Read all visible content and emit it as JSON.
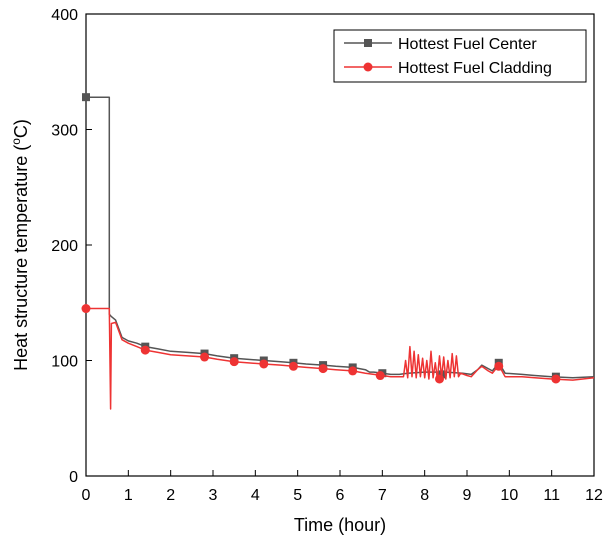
{
  "chart_data": {
    "type": "line",
    "xlabel": "Time (hour)",
    "ylabel": "Heat structure temperature (°C)",
    "ylabel_parts": {
      "pre": "Heat structure temperature (",
      "sup": "o",
      "post": "C)"
    },
    "xlim": [
      0,
      12
    ],
    "ylim": [
      0,
      400
    ],
    "xticks": [
      0,
      1,
      2,
      3,
      4,
      5,
      6,
      7,
      8,
      9,
      10,
      11,
      12
    ],
    "yticks": [
      0,
      100,
      200,
      300,
      400
    ],
    "grid": false,
    "legend_position": "top-right",
    "series": [
      {
        "name": "Hottest Fuel Center",
        "color": "#555555",
        "marker": "square",
        "points": [
          [
            0,
            328
          ],
          [
            0.55,
            328
          ],
          [
            0.55,
            140
          ],
          [
            0.6,
            138
          ],
          [
            0.7,
            135
          ],
          [
            0.85,
            120
          ],
          [
            1.0,
            117
          ],
          [
            1.2,
            115
          ],
          [
            1.4,
            112
          ],
          [
            1.7,
            110
          ],
          [
            2.0,
            108
          ],
          [
            2.4,
            107
          ],
          [
            2.8,
            106
          ],
          [
            3.1,
            104
          ],
          [
            3.5,
            102
          ],
          [
            3.8,
            101
          ],
          [
            4.2,
            100
          ],
          [
            4.6,
            99
          ],
          [
            4.9,
            98
          ],
          [
            5.2,
            97
          ],
          [
            5.6,
            96
          ],
          [
            5.9,
            95
          ],
          [
            6.3,
            94
          ],
          [
            6.6,
            92
          ],
          [
            6.7,
            90
          ],
          [
            6.8,
            90
          ],
          [
            7.0,
            89
          ],
          [
            7.2,
            88
          ],
          [
            7.4,
            88
          ],
          [
            7.6,
            89
          ],
          [
            8.0,
            90
          ],
          [
            8.5,
            90
          ],
          [
            8.9,
            89
          ],
          [
            9.1,
            88
          ],
          [
            9.25,
            92
          ],
          [
            9.35,
            96
          ],
          [
            9.5,
            93
          ],
          [
            9.6,
            91
          ],
          [
            9.75,
            98
          ],
          [
            9.9,
            89
          ],
          [
            10.3,
            88
          ],
          [
            10.6,
            87
          ],
          [
            11.0,
            86
          ],
          [
            11.5,
            85
          ],
          [
            12.0,
            86
          ]
        ],
        "marker_points": [
          [
            0,
            328
          ],
          [
            1.4,
            112
          ],
          [
            2.8,
            106
          ],
          [
            3.5,
            102
          ],
          [
            4.2,
            100
          ],
          [
            4.9,
            98
          ],
          [
            5.6,
            96
          ],
          [
            6.3,
            94
          ],
          [
            7.0,
            89
          ],
          [
            8.4,
            88
          ],
          [
            9.75,
            98
          ],
          [
            11.1,
            86
          ]
        ]
      },
      {
        "name": "Hottest Fuel Cladding",
        "color": "#ee3333",
        "marker": "circle",
        "points": [
          [
            0,
            145
          ],
          [
            0.55,
            145
          ],
          [
            0.58,
            58
          ],
          [
            0.6,
            132
          ],
          [
            0.7,
            133
          ],
          [
            0.85,
            118
          ],
          [
            1.0,
            115
          ],
          [
            1.2,
            112
          ],
          [
            1.4,
            109
          ],
          [
            1.7,
            107
          ],
          [
            2.0,
            105
          ],
          [
            2.4,
            104
          ],
          [
            2.8,
            103
          ],
          [
            3.1,
            101
          ],
          [
            3.5,
            99
          ],
          [
            3.8,
            98
          ],
          [
            4.2,
            97
          ],
          [
            4.6,
            96
          ],
          [
            4.9,
            95
          ],
          [
            5.2,
            94
          ],
          [
            5.6,
            93
          ],
          [
            5.9,
            92
          ],
          [
            6.3,
            91
          ],
          [
            6.6,
            89
          ],
          [
            6.8,
            88
          ],
          [
            7.0,
            87
          ],
          [
            7.2,
            86
          ],
          [
            7.4,
            86
          ],
          [
            7.5,
            86
          ],
          [
            7.55,
            100
          ],
          [
            7.6,
            85
          ],
          [
            7.65,
            112
          ],
          [
            7.7,
            86
          ],
          [
            7.75,
            108
          ],
          [
            7.8,
            85
          ],
          [
            7.85,
            105
          ],
          [
            7.9,
            86
          ],
          [
            7.95,
            102
          ],
          [
            8.0,
            85
          ],
          [
            8.05,
            100
          ],
          [
            8.1,
            84
          ],
          [
            8.15,
            108
          ],
          [
            8.2,
            85
          ],
          [
            8.25,
            98
          ],
          [
            8.3,
            84
          ],
          [
            8.35,
            104
          ],
          [
            8.4,
            85
          ],
          [
            8.45,
            103
          ],
          [
            8.5,
            84
          ],
          [
            8.55,
            100
          ],
          [
            8.6,
            85
          ],
          [
            8.65,
            106
          ],
          [
            8.7,
            86
          ],
          [
            8.75,
            104
          ],
          [
            8.8,
            86
          ],
          [
            8.85,
            89
          ],
          [
            9.0,
            87
          ],
          [
            9.1,
            86
          ],
          [
            9.25,
            92
          ],
          [
            9.35,
            95
          ],
          [
            9.5,
            91
          ],
          [
            9.6,
            89
          ],
          [
            9.75,
            96
          ],
          [
            9.9,
            86
          ],
          [
            10.3,
            86
          ],
          [
            10.6,
            85
          ],
          [
            11.0,
            84
          ],
          [
            11.5,
            83
          ],
          [
            12.0,
            85
          ]
        ],
        "marker_points": [
          [
            0,
            145
          ],
          [
            1.4,
            109
          ],
          [
            2.8,
            103
          ],
          [
            3.5,
            99
          ],
          [
            4.2,
            97
          ],
          [
            4.9,
            95
          ],
          [
            5.6,
            93
          ],
          [
            6.3,
            91
          ],
          [
            6.95,
            87
          ],
          [
            8.35,
            84
          ],
          [
            9.75,
            95
          ],
          [
            11.1,
            84
          ]
        ]
      }
    ]
  }
}
